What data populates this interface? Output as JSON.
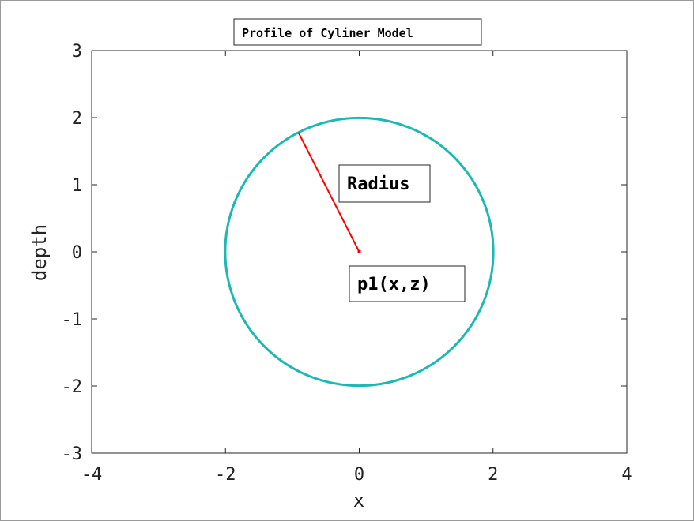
{
  "chart_data": {
    "type": "line",
    "title": "Profile of Cyliner Model",
    "xlabel": "x",
    "ylabel": "depth",
    "xlim": [
      -4,
      4
    ],
    "ylim": [
      -3,
      3
    ],
    "x_ticks": [
      -4,
      -2,
      0,
      2,
      4
    ],
    "y_ticks": [
      -3,
      -2,
      -1,
      0,
      1,
      2,
      3
    ],
    "x_tick_labels": [
      "-4",
      "-2",
      "0",
      "2",
      "4"
    ],
    "y_tick_labels": [
      "-3",
      "-2",
      "-1",
      "0",
      "1",
      "2",
      "3"
    ],
    "grid": false,
    "colors": {
      "circle": "#1db8b3",
      "radius": "#ff0000",
      "axes": "#262626"
    },
    "circle": {
      "center": [
        0,
        0
      ],
      "radius": 2
    },
    "radius_line": {
      "from": [
        0,
        0
      ],
      "to": [
        -0.91,
        1.78
      ]
    },
    "annotations": [
      {
        "text": "Radius",
        "anchor": [
          -0.3,
          1.0
        ]
      },
      {
        "text": "p1(x,z)",
        "anchor": [
          -0.15,
          -0.5
        ]
      }
    ]
  }
}
